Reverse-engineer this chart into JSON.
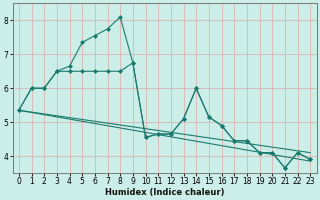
{
  "xlabel": "Humidex (Indice chaleur)",
  "bg_color": "#cceee8",
  "line_color": "#1a7a6e",
  "grid_color": "#aaddcc",
  "xlim": [
    -0.5,
    23.5
  ],
  "ylim": [
    3.5,
    8.5
  ],
  "xticks": [
    0,
    1,
    2,
    3,
    4,
    5,
    6,
    7,
    8,
    9,
    10,
    11,
    12,
    13,
    14,
    15,
    16,
    17,
    18,
    19,
    20,
    21,
    22,
    23
  ],
  "yticks": [
    4,
    5,
    6,
    7,
    8
  ],
  "series": [
    {
      "x": [
        0,
        23
      ],
      "y": [
        5.35,
        3.85
      ]
    },
    {
      "x": [
        0,
        23
      ],
      "y": [
        5.35,
        4.1
      ]
    },
    {
      "x": [
        0,
        1,
        2,
        3,
        4,
        5,
        6,
        7,
        8,
        9,
        10,
        11,
        12,
        13,
        14,
        15,
        16,
        17,
        18,
        19,
        20,
        21,
        22,
        23
      ],
      "y": [
        5.35,
        6.0,
        6.0,
        6.5,
        6.65,
        7.35,
        7.55,
        7.75,
        8.1,
        6.75,
        4.55,
        4.65,
        4.65,
        5.1,
        6.0,
        5.15,
        4.9,
        4.45,
        4.45,
        4.1,
        4.1,
        3.65,
        4.1,
        3.9
      ]
    },
    {
      "x": [
        0,
        1,
        2,
        3,
        4,
        5,
        6,
        7,
        8,
        9,
        10,
        11,
        12,
        13,
        14,
        15,
        16,
        17,
        18,
        19,
        20,
        21,
        22,
        23
      ],
      "y": [
        5.35,
        6.0,
        6.0,
        6.5,
        6.5,
        6.5,
        6.5,
        6.5,
        6.5,
        6.75,
        4.55,
        4.65,
        4.65,
        5.1,
        6.0,
        5.15,
        4.9,
        4.45,
        4.45,
        4.1,
        4.1,
        3.65,
        4.1,
        3.9
      ]
    }
  ]
}
